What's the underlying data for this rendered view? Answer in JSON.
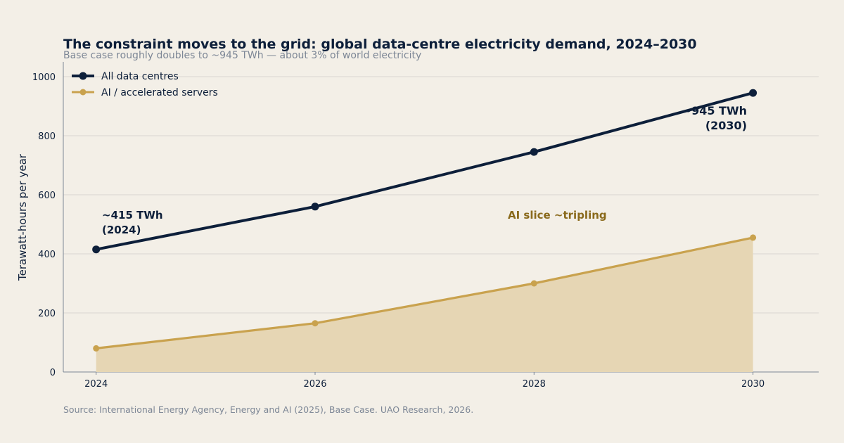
{
  "chart_data": {
    "type": "line",
    "title": "The constraint moves to the grid: global data-centre electricity demand, 2024–2030",
    "subtitle": "Base case roughly doubles to ~945 TWh — about 3% of world electricity",
    "ylabel": "Terawatt-hours per year",
    "xlabel": "",
    "x": [
      2024,
      2026,
      2028,
      2030
    ],
    "xticks": [
      "2024",
      "2026",
      "2028",
      "2030"
    ],
    "yticks": [
      "0",
      "200",
      "400",
      "600",
      "800",
      "1000"
    ],
    "xlim": [
      2023.7,
      2030.6
    ],
    "ylim": [
      0,
      1050
    ],
    "grid": "horizontal",
    "legend_position": "top-left",
    "series": [
      {
        "name": "All data centres",
        "values": [
          415,
          560,
          745,
          945
        ],
        "color": "#0d1f3a"
      },
      {
        "name": "AI / accelerated servers",
        "values": [
          80,
          165,
          300,
          455
        ],
        "color": "#c9a24e",
        "fill": "#e6d6b4"
      }
    ],
    "annotations": [
      {
        "lines": [
          "~415 TWh",
          "(2024)"
        ],
        "color": "#0d1f3a"
      },
      {
        "lines": [
          "~945 TWh",
          "(2030)"
        ],
        "color": "#0d1f3a"
      },
      {
        "lines": [
          "AI slice ~tripling"
        ],
        "color": "#8a6a1c"
      }
    ],
    "source": "Source: International Energy Agency, Energy and AI (2025), Base Case.  UAO Research, 2026."
  }
}
